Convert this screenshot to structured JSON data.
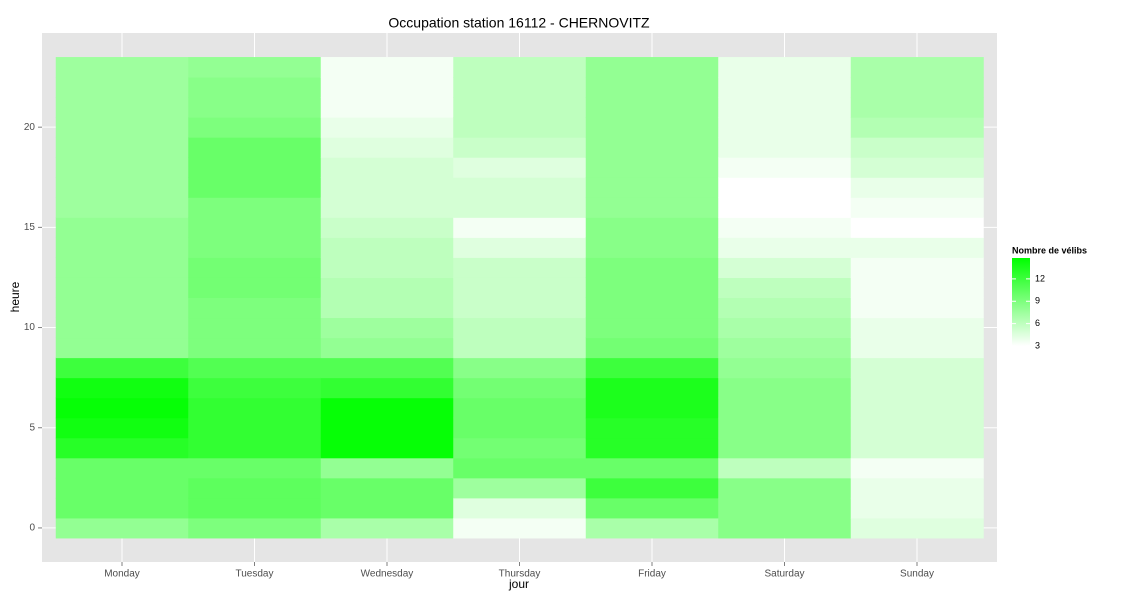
{
  "chart_data": {
    "type": "heatmap",
    "title": "Occupation station 16112 - CHERNOVITZ",
    "xlabel": "jour",
    "ylabel": "heure",
    "categories": [
      "Monday",
      "Tuesday",
      "Wednesday",
      "Thursday",
      "Friday",
      "Saturday",
      "Sunday"
    ],
    "y": [
      0,
      1,
      2,
      3,
      4,
      5,
      6,
      7,
      8,
      9,
      10,
      11,
      12,
      13,
      14,
      15,
      16,
      17,
      18,
      19,
      20,
      21,
      22,
      23
    ],
    "values": [
      [
        8,
        10,
        10,
        10,
        13,
        14,
        14.5,
        14,
        12,
        8,
        8,
        8,
        8,
        8,
        8,
        8,
        7.5,
        7.5,
        7.5,
        7.5,
        7.5,
        7.5,
        7.5,
        7.5
      ],
      [
        9,
        10.5,
        10.5,
        10,
        12.5,
        12.5,
        12.5,
        12,
        11,
        9,
        9,
        9,
        9.5,
        9.5,
        9,
        9,
        9,
        10,
        10,
        10,
        9,
        8.5,
        8.5,
        8
      ],
      [
        7,
        10,
        10,
        8,
        14.5,
        14.5,
        14.5,
        12.5,
        11,
        8,
        7.5,
        6.5,
        6.5,
        6,
        6,
        5.5,
        5,
        5,
        5,
        4.5,
        4,
        3.5,
        3.5,
        3.5
      ],
      [
        3.5,
        4.5,
        7.5,
        10,
        9.5,
        10,
        10,
        9.5,
        8.5,
        6,
        6,
        5.5,
        5.5,
        5.5,
        4.5,
        3.5,
        5,
        5,
        4.5,
        5.5,
        6,
        6,
        6,
        6
      ],
      [
        7,
        10,
        12,
        10,
        13,
        13,
        13.5,
        13.5,
        12,
        9.5,
        9,
        9,
        9,
        9,
        8.5,
        8.5,
        8,
        8,
        8,
        8,
        8,
        8,
        8,
        8
      ],
      [
        8.5,
        8.5,
        8.5,
        6,
        8.5,
        8.5,
        8.5,
        8.5,
        8,
        7.5,
        7,
        6.5,
        6,
        5,
        4,
        3.5,
        3,
        3,
        3.5,
        4,
        4,
        4,
        4,
        4
      ],
      [
        4.5,
        4,
        4,
        3.5,
        5,
        5,
        5,
        5,
        5,
        4,
        4,
        3.5,
        3.5,
        3.5,
        4,
        3,
        3.5,
        4,
        5,
        5.5,
        6.5,
        7,
        7,
        7
      ]
    ],
    "ylim": [
      -1.7,
      24.7
    ],
    "yticks": [
      0,
      5,
      10,
      15,
      20
    ],
    "grid": true,
    "colorscale": {
      "low": "#ffffff",
      "high": "#00ff00",
      "limits": [
        3,
        14.8
      ]
    },
    "legend": {
      "title": "Nombre de vélibs",
      "ticks": [
        3,
        6,
        9,
        12
      ],
      "position": "right"
    }
  }
}
